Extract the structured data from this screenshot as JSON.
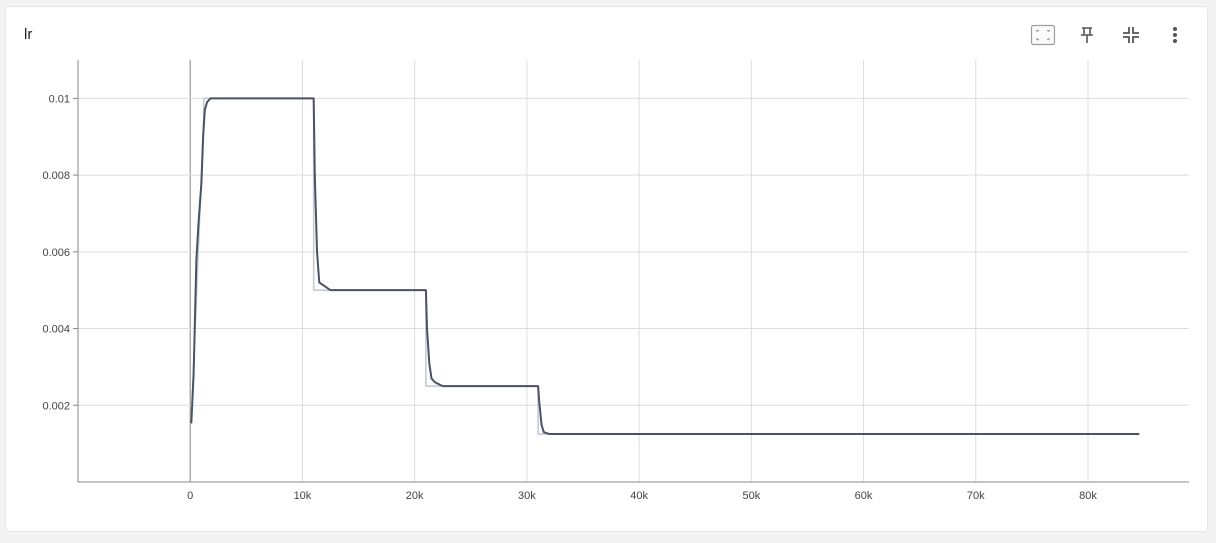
{
  "card": {
    "title": "lr"
  },
  "toolbar": {
    "icons": [
      "fit-domain-icon",
      "pin-icon",
      "collapse-icon",
      "more-vert-icon"
    ]
  },
  "colors": {
    "series_main": "#4a5263",
    "series_raw": "#c5cad6",
    "grid": "#dddddd",
    "axis": "#888888"
  },
  "chart_data": {
    "type": "line",
    "title": "lr",
    "xlabel": "",
    "ylabel": "",
    "xlim": [
      -10000,
      89000
    ],
    "ylim": [
      0,
      0.011
    ],
    "grid": true,
    "x_ticks": [
      0,
      10000,
      20000,
      30000,
      40000,
      50000,
      60000,
      70000,
      80000
    ],
    "x_tick_labels": [
      "0",
      "10k",
      "20k",
      "30k",
      "40k",
      "50k",
      "60k",
      "70k",
      "80k"
    ],
    "y_ticks": [
      0.002,
      0.004,
      0.006,
      0.008,
      0.01
    ],
    "y_tick_labels": [
      "0.002",
      "0.004",
      "0.006",
      "0.008",
      "0.01"
    ],
    "series": [
      {
        "role": "smoothed",
        "x": [
          100,
          300,
          550,
          750,
          1000,
          1150,
          1300,
          1500,
          1800,
          2000,
          10000,
          11000,
          11100,
          11300,
          11500,
          12000,
          12500,
          20000,
          21000,
          21100,
          21300,
          21500,
          21800,
          22500,
          30000,
          31000,
          31100,
          31300,
          31500,
          32000,
          84500
        ],
        "y": [
          0.00155,
          0.0028,
          0.0058,
          0.0068,
          0.0078,
          0.009,
          0.0097,
          0.0099,
          0.01,
          0.01,
          0.01,
          0.01,
          0.008,
          0.006,
          0.0052,
          0.0051,
          0.005,
          0.005,
          0.005,
          0.004,
          0.0031,
          0.0027,
          0.0026,
          0.0025,
          0.0025,
          0.0025,
          0.0021,
          0.0015,
          0.0013,
          0.00125,
          0.00125
        ]
      },
      {
        "role": "raw",
        "x": [
          100,
          1200,
          1200,
          11000,
          11000,
          21000,
          21000,
          31000,
          31000,
          84500
        ],
        "y": [
          0.00155,
          0.0095,
          0.01,
          0.01,
          0.005,
          0.005,
          0.0025,
          0.0025,
          0.00125,
          0.00125
        ]
      }
    ]
  }
}
